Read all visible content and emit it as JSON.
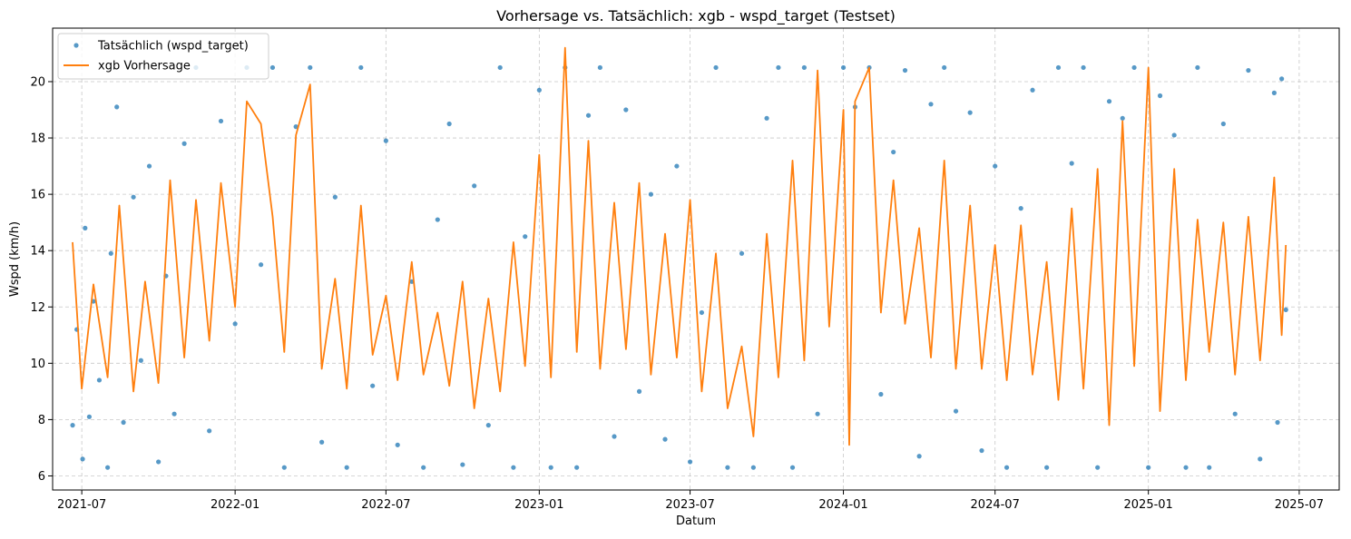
{
  "chart_data": {
    "type": "scatter+line",
    "title": "Vorhersage vs. Tatsächlich: xgb - wspd_target (Testset)",
    "xlabel": "Datum",
    "ylabel": "Wspd (km/h)",
    "x_range": [
      "2021-05-27",
      "2025-08-18"
    ],
    "ylim": [
      5.5,
      21.9
    ],
    "x_ticks": [
      "2021-07",
      "2022-01",
      "2022-07",
      "2023-01",
      "2023-07",
      "2024-01",
      "2024-07",
      "2025-01",
      "2025-07"
    ],
    "y_ticks": [
      6,
      8,
      10,
      12,
      14,
      16,
      18,
      20
    ],
    "grid": true,
    "legend_position": "top-left",
    "series": [
      {
        "name": "Tatsächlich (wspd_target)",
        "kind": "scatter",
        "color": "#1f77b4",
        "points": [
          [
            "2021-06-20",
            7.8
          ],
          [
            "2021-06-25",
            11.2
          ],
          [
            "2021-07-02",
            6.6
          ],
          [
            "2021-07-05",
            14.8
          ],
          [
            "2021-07-10",
            8.1
          ],
          [
            "2021-07-15",
            12.2
          ],
          [
            "2021-07-22",
            9.4
          ],
          [
            "2021-08-01",
            6.3
          ],
          [
            "2021-08-05",
            13.9
          ],
          [
            "2021-08-12",
            19.1
          ],
          [
            "2021-08-20",
            7.9
          ],
          [
            "2021-09-01",
            15.9
          ],
          [
            "2021-09-10",
            10.1
          ],
          [
            "2021-09-20",
            17.0
          ],
          [
            "2021-10-01",
            6.5
          ],
          [
            "2021-10-10",
            13.1
          ],
          [
            "2021-10-20",
            8.2
          ],
          [
            "2021-11-01",
            17.8
          ],
          [
            "2021-11-15",
            20.5
          ],
          [
            "2021-12-01",
            7.6
          ],
          [
            "2021-12-15",
            18.6
          ],
          [
            "2022-01-01",
            11.4
          ],
          [
            "2022-01-15",
            20.5
          ],
          [
            "2022-02-01",
            13.5
          ],
          [
            "2022-02-15",
            20.5
          ],
          [
            "2022-03-01",
            6.3
          ],
          [
            "2022-03-15",
            18.4
          ],
          [
            "2022-04-01",
            20.5
          ],
          [
            "2022-04-15",
            7.2
          ],
          [
            "2022-05-01",
            15.9
          ],
          [
            "2022-05-15",
            6.3
          ],
          [
            "2022-06-01",
            20.5
          ],
          [
            "2022-06-15",
            9.2
          ],
          [
            "2022-07-01",
            17.9
          ],
          [
            "2022-07-15",
            7.1
          ],
          [
            "2022-08-01",
            12.9
          ],
          [
            "2022-08-15",
            6.3
          ],
          [
            "2022-09-01",
            15.1
          ],
          [
            "2022-09-15",
            18.5
          ],
          [
            "2022-10-01",
            6.4
          ],
          [
            "2022-10-15",
            16.3
          ],
          [
            "2022-11-01",
            7.8
          ],
          [
            "2022-11-15",
            20.5
          ],
          [
            "2022-12-01",
            6.3
          ],
          [
            "2022-12-15",
            14.5
          ],
          [
            "2023-01-01",
            19.7
          ],
          [
            "2023-01-15",
            6.3
          ],
          [
            "2023-02-01",
            20.5
          ],
          [
            "2023-02-15",
            6.3
          ],
          [
            "2023-03-01",
            18.8
          ],
          [
            "2023-03-15",
            20.5
          ],
          [
            "2023-04-01",
            7.4
          ],
          [
            "2023-04-15",
            19.0
          ],
          [
            "2023-05-01",
            9.0
          ],
          [
            "2023-05-15",
            16.0
          ],
          [
            "2023-06-01",
            7.3
          ],
          [
            "2023-06-15",
            17.0
          ],
          [
            "2023-07-01",
            6.5
          ],
          [
            "2023-07-15",
            11.8
          ],
          [
            "2023-08-01",
            20.5
          ],
          [
            "2023-08-15",
            6.3
          ],
          [
            "2023-09-01",
            13.9
          ],
          [
            "2023-09-15",
            6.3
          ],
          [
            "2023-10-01",
            18.7
          ],
          [
            "2023-10-15",
            20.5
          ],
          [
            "2023-11-01",
            6.3
          ],
          [
            "2023-11-15",
            20.5
          ],
          [
            "2023-12-01",
            8.2
          ],
          [
            "2024-01-01",
            20.5
          ],
          [
            "2024-01-15",
            19.1
          ],
          [
            "2024-02-01",
            20.5
          ],
          [
            "2024-02-15",
            8.9
          ],
          [
            "2024-03-01",
            17.5
          ],
          [
            "2024-03-15",
            20.4
          ],
          [
            "2024-04-01",
            6.7
          ],
          [
            "2024-04-15",
            19.2
          ],
          [
            "2024-05-01",
            20.5
          ],
          [
            "2024-05-15",
            8.3
          ],
          [
            "2024-06-01",
            18.9
          ],
          [
            "2024-06-15",
            6.9
          ],
          [
            "2024-07-01",
            17.0
          ],
          [
            "2024-07-15",
            6.3
          ],
          [
            "2024-08-01",
            15.5
          ],
          [
            "2024-08-15",
            19.7
          ],
          [
            "2024-09-01",
            6.3
          ],
          [
            "2024-09-15",
            20.5
          ],
          [
            "2024-10-01",
            17.1
          ],
          [
            "2024-10-15",
            20.5
          ],
          [
            "2024-11-01",
            6.3
          ],
          [
            "2024-11-15",
            19.3
          ],
          [
            "2024-12-01",
            18.7
          ],
          [
            "2024-12-15",
            20.5
          ],
          [
            "2025-01-01",
            6.3
          ],
          [
            "2025-01-15",
            19.5
          ],
          [
            "2025-02-01",
            18.1
          ],
          [
            "2025-02-15",
            6.3
          ],
          [
            "2025-03-01",
            20.5
          ],
          [
            "2025-03-15",
            6.3
          ],
          [
            "2025-04-01",
            18.5
          ],
          [
            "2025-04-15",
            8.2
          ],
          [
            "2025-05-01",
            20.4
          ],
          [
            "2025-05-15",
            6.6
          ],
          [
            "2025-06-01",
            19.6
          ],
          [
            "2025-06-05",
            7.9
          ],
          [
            "2025-06-10",
            20.1
          ],
          [
            "2025-06-15",
            11.9
          ]
        ]
      },
      {
        "name": "xgb Vorhersage",
        "kind": "line",
        "color": "#ff7f0e",
        "points": [
          [
            "2021-06-20",
            14.3
          ],
          [
            "2021-07-01",
            9.1
          ],
          [
            "2021-07-15",
            12.8
          ],
          [
            "2021-08-01",
            9.5
          ],
          [
            "2021-08-15",
            15.6
          ],
          [
            "2021-09-01",
            9.0
          ],
          [
            "2021-09-15",
            12.9
          ],
          [
            "2021-10-01",
            9.3
          ],
          [
            "2021-10-15",
            16.5
          ],
          [
            "2021-11-01",
            10.2
          ],
          [
            "2021-11-15",
            15.8
          ],
          [
            "2021-12-01",
            10.8
          ],
          [
            "2021-12-15",
            16.4
          ],
          [
            "2022-01-01",
            12.0
          ],
          [
            "2022-01-15",
            19.3
          ],
          [
            "2022-02-01",
            18.5
          ],
          [
            "2022-02-15",
            15.2
          ],
          [
            "2022-03-01",
            10.4
          ],
          [
            "2022-03-15",
            18.1
          ],
          [
            "2022-04-01",
            19.9
          ],
          [
            "2022-04-15",
            9.8
          ],
          [
            "2022-05-01",
            13.0
          ],
          [
            "2022-05-15",
            9.1
          ],
          [
            "2022-06-01",
            15.6
          ],
          [
            "2022-06-15",
            10.3
          ],
          [
            "2022-07-01",
            12.4
          ],
          [
            "2022-07-15",
            9.4
          ],
          [
            "2022-08-01",
            13.6
          ],
          [
            "2022-08-15",
            9.6
          ],
          [
            "2022-09-01",
            11.8
          ],
          [
            "2022-09-15",
            9.2
          ],
          [
            "2022-10-01",
            12.9
          ],
          [
            "2022-10-15",
            8.4
          ],
          [
            "2022-11-01",
            12.3
          ],
          [
            "2022-11-15",
            9.0
          ],
          [
            "2022-12-01",
            14.3
          ],
          [
            "2022-12-15",
            9.9
          ],
          [
            "2023-01-01",
            17.4
          ],
          [
            "2023-01-15",
            9.5
          ],
          [
            "2023-02-01",
            21.2
          ],
          [
            "2023-02-15",
            10.4
          ],
          [
            "2023-03-01",
            17.9
          ],
          [
            "2023-03-15",
            9.8
          ],
          [
            "2023-04-01",
            15.7
          ],
          [
            "2023-04-15",
            10.5
          ],
          [
            "2023-05-01",
            16.4
          ],
          [
            "2023-05-15",
            9.6
          ],
          [
            "2023-06-01",
            14.6
          ],
          [
            "2023-06-15",
            10.2
          ],
          [
            "2023-07-01",
            15.8
          ],
          [
            "2023-07-15",
            9.0
          ],
          [
            "2023-08-01",
            13.9
          ],
          [
            "2023-08-15",
            8.4
          ],
          [
            "2023-09-01",
            10.6
          ],
          [
            "2023-09-15",
            7.4
          ],
          [
            "2023-10-01",
            14.6
          ],
          [
            "2023-10-15",
            9.5
          ],
          [
            "2023-11-01",
            17.2
          ],
          [
            "2023-11-15",
            10.1
          ],
          [
            "2023-12-01",
            20.4
          ],
          [
            "2023-12-15",
            11.3
          ],
          [
            "2024-01-01",
            19.0
          ],
          [
            "2024-01-08",
            7.1
          ],
          [
            "2024-01-15",
            19.3
          ],
          [
            "2024-02-01",
            20.5
          ],
          [
            "2024-02-15",
            11.8
          ],
          [
            "2024-03-01",
            16.5
          ],
          [
            "2024-03-15",
            11.4
          ],
          [
            "2024-04-01",
            14.8
          ],
          [
            "2024-04-15",
            10.2
          ],
          [
            "2024-05-01",
            17.2
          ],
          [
            "2024-05-15",
            9.8
          ],
          [
            "2024-06-01",
            15.6
          ],
          [
            "2024-06-15",
            9.8
          ],
          [
            "2024-07-01",
            14.2
          ],
          [
            "2024-07-15",
            9.4
          ],
          [
            "2024-08-01",
            14.9
          ],
          [
            "2024-08-15",
            9.6
          ],
          [
            "2024-09-01",
            13.6
          ],
          [
            "2024-09-15",
            8.7
          ],
          [
            "2024-10-01",
            15.5
          ],
          [
            "2024-10-15",
            9.1
          ],
          [
            "2024-11-01",
            16.9
          ],
          [
            "2024-11-15",
            7.8
          ],
          [
            "2024-12-01",
            18.6
          ],
          [
            "2024-12-15",
            9.9
          ],
          [
            "2025-01-01",
            20.5
          ],
          [
            "2025-01-15",
            8.3
          ],
          [
            "2025-02-01",
            16.9
          ],
          [
            "2025-02-15",
            9.4
          ],
          [
            "2025-03-01",
            15.1
          ],
          [
            "2025-03-15",
            10.4
          ],
          [
            "2025-04-01",
            15.0
          ],
          [
            "2025-04-15",
            9.6
          ],
          [
            "2025-05-01",
            15.2
          ],
          [
            "2025-05-15",
            10.1
          ],
          [
            "2025-06-01",
            16.6
          ],
          [
            "2025-06-10",
            11.0
          ],
          [
            "2025-06-15",
            14.2
          ]
        ]
      }
    ]
  }
}
